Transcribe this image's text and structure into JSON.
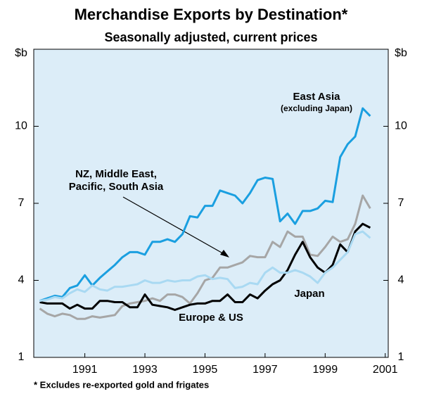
{
  "chart_data": {
    "type": "line",
    "title": "Merchandise Exports by Destination*",
    "subtitle": "Seasonally adjusted, current prices",
    "y_unit": "$b",
    "footnote": "* Excludes re-exported gold and frigates",
    "x": [
      1990,
      1990.25,
      1990.5,
      1990.75,
      1991,
      1991.25,
      1991.5,
      1991.75,
      1992,
      1992.25,
      1992.5,
      1992.75,
      1993,
      1993.25,
      1993.5,
      1993.75,
      1994,
      1994.25,
      1994.5,
      1994.75,
      1995,
      1995.25,
      1995.5,
      1995.75,
      1996,
      1996.25,
      1996.5,
      1996.75,
      1997,
      1997.25,
      1997.5,
      1997.75,
      1998,
      1998.25,
      1998.5,
      1998.75,
      1999,
      1999.25,
      1999.5,
      1999.75,
      2000,
      2000.25,
      2000.5,
      2000.75,
      2001
    ],
    "xlim": [
      1989.8,
      2001.6
    ],
    "xticks": [
      {
        "value": 1991.5,
        "label": "1991"
      },
      {
        "value": 1993.5,
        "label": "1993"
      },
      {
        "value": 1995.5,
        "label": "1995"
      },
      {
        "value": 1997.5,
        "label": "1997"
      },
      {
        "value": 1999.5,
        "label": "1999"
      },
      {
        "value": 2001.5,
        "label": "2001"
      }
    ],
    "ylim": [
      1,
      13
    ],
    "yticks": [
      1,
      4,
      7,
      10
    ],
    "grid": false,
    "series": [
      {
        "label": [
          "East Asia",
          "(excluding Japan)"
        ],
        "color": "#1a9fe0",
        "values": [
          3.2,
          3.3,
          3.4,
          3.35,
          3.7,
          3.8,
          4.2,
          3.8,
          4.1,
          4.35,
          4.6,
          4.9,
          5.1,
          5.1,
          5.0,
          5.5,
          5.5,
          5.6,
          5.5,
          5.8,
          6.5,
          6.45,
          6.9,
          6.9,
          7.5,
          7.4,
          7.3,
          7.0,
          7.4,
          7.9,
          8.0,
          7.95,
          6.3,
          6.6,
          6.2,
          6.7,
          6.7,
          6.8,
          7.1,
          7.05,
          8.8,
          9.3,
          9.6,
          10.7,
          10.4
        ]
      },
      {
        "label": [
          "NZ, Middle East,",
          "Pacific, South Asia"
        ],
        "color": "#a6a6a6",
        "values": [
          2.9,
          2.7,
          2.6,
          2.7,
          2.65,
          2.5,
          2.5,
          2.6,
          2.55,
          2.6,
          2.65,
          3.0,
          3.1,
          3.15,
          3.2,
          3.3,
          3.2,
          3.45,
          3.45,
          3.35,
          3.1,
          3.5,
          4.0,
          4.1,
          4.5,
          4.5,
          4.6,
          4.7,
          4.95,
          4.9,
          4.9,
          5.5,
          5.3,
          5.9,
          5.7,
          5.7,
          5.0,
          4.95,
          5.3,
          5.7,
          5.5,
          5.6,
          6.2,
          7.3,
          6.8
        ]
      },
      {
        "label": [
          "Europe & US"
        ],
        "color": "#000000",
        "values": [
          3.15,
          3.1,
          3.1,
          3.1,
          2.9,
          3.05,
          2.9,
          2.9,
          3.2,
          3.2,
          3.15,
          3.15,
          2.95,
          2.95,
          3.45,
          3.05,
          3.0,
          2.95,
          2.85,
          2.95,
          3.05,
          3.1,
          3.1,
          3.2,
          3.2,
          3.45,
          3.15,
          3.15,
          3.45,
          3.3,
          3.6,
          3.85,
          4.0,
          4.4,
          5.0,
          5.5,
          4.9,
          4.5,
          4.3,
          4.6,
          5.4,
          5.1,
          5.9,
          6.2,
          6.05
        ]
      },
      {
        "label": [
          "Japan"
        ],
        "color": "#a9d9f2",
        "values": [
          3.2,
          3.25,
          3.35,
          3.3,
          3.5,
          3.65,
          3.55,
          3.8,
          3.65,
          3.6,
          3.75,
          3.75,
          3.8,
          3.85,
          4.0,
          3.9,
          3.9,
          4.0,
          3.95,
          4.0,
          4.0,
          4.15,
          4.2,
          4.05,
          4.1,
          4.05,
          3.7,
          3.75,
          3.9,
          3.85,
          4.3,
          4.5,
          4.3,
          4.3,
          4.4,
          4.3,
          4.15,
          3.9,
          4.3,
          4.5,
          4.8,
          5.1,
          5.8,
          5.9,
          5.65
        ]
      }
    ]
  }
}
